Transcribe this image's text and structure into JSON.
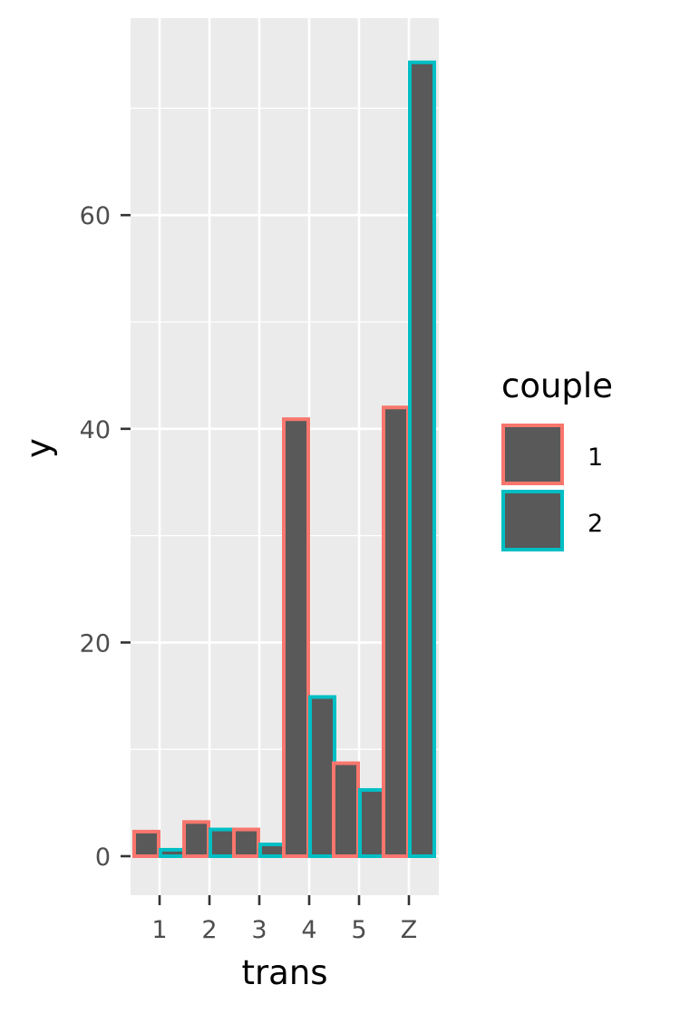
{
  "chart_data": {
    "type": "bar",
    "categories": [
      "1",
      "2",
      "3",
      "4",
      "5",
      "Z"
    ],
    "series": [
      {
        "name": "1",
        "values": [
          2.3,
          3.2,
          2.5,
          40.9,
          8.7,
          42.0
        ]
      },
      {
        "name": "2",
        "values": [
          0.6,
          2.5,
          1.1,
          14.9,
          6.2,
          74.3
        ]
      }
    ],
    "xlabel": "trans",
    "ylabel": "y",
    "ylim": [
      -3.7,
      78.0
    ],
    "yticks": [
      0,
      20,
      40,
      60
    ],
    "grid": true,
    "legend": {
      "title": "couple",
      "position": "right"
    },
    "colors": {
      "panel_bg": "#ebebeb",
      "grid": "#ffffff",
      "bar_fill": "#595959",
      "series": [
        "#f8766d",
        "#00bfc4"
      ],
      "tick_text": "#4d4d4d",
      "tick_line": "#333333"
    }
  }
}
